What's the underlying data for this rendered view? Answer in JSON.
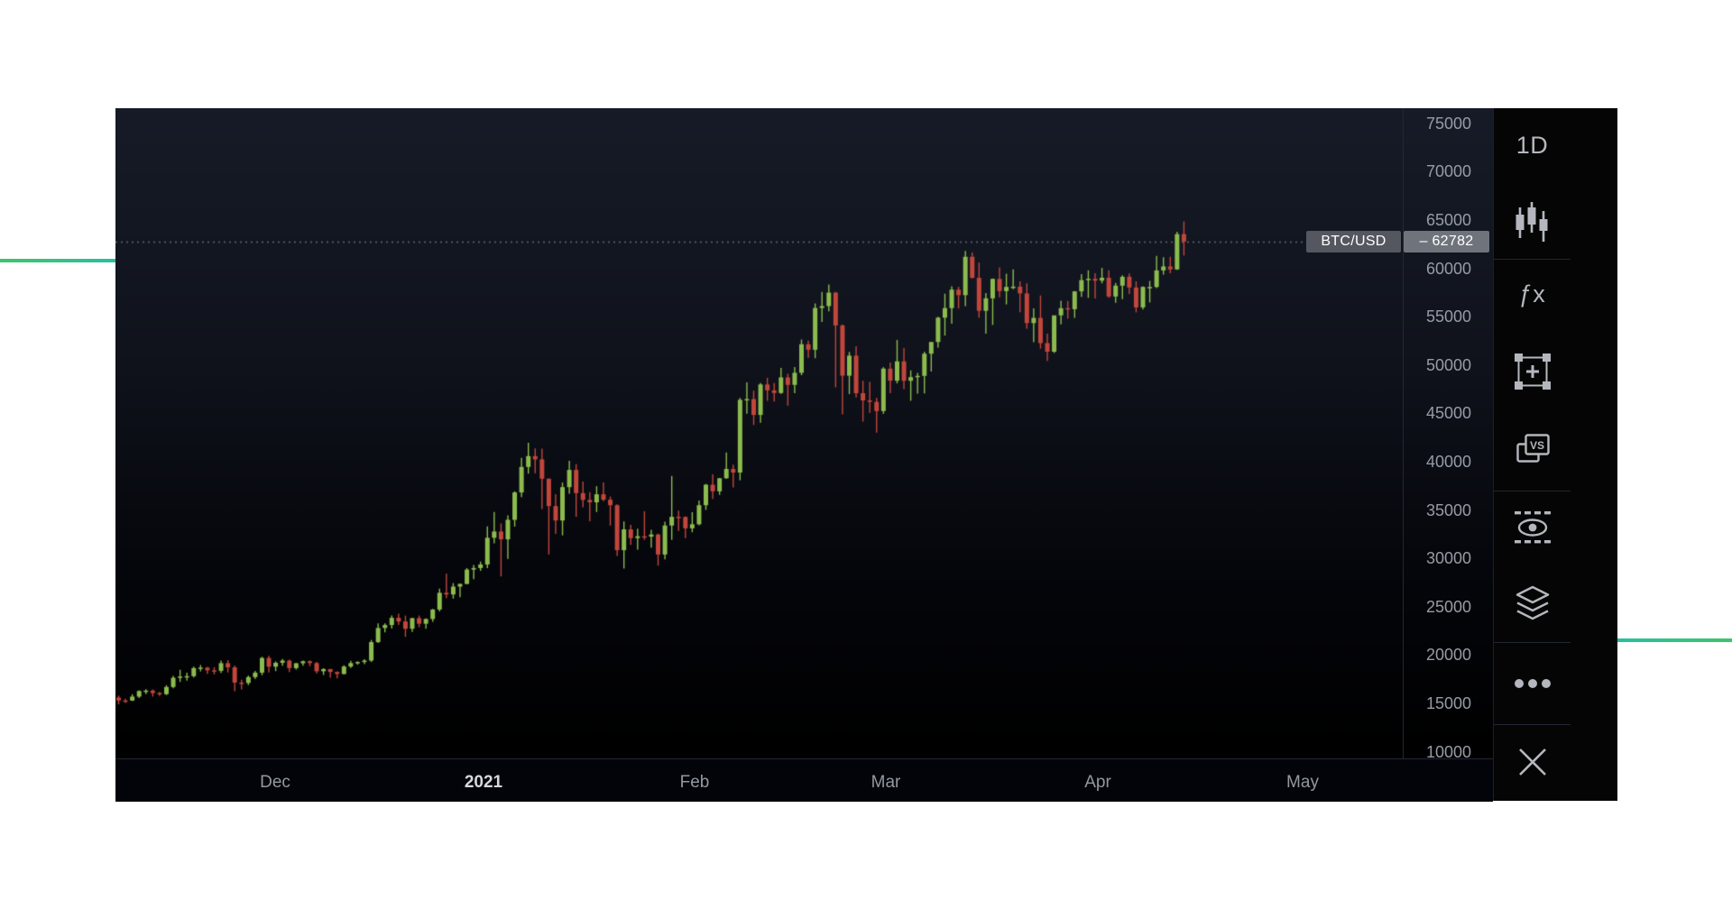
{
  "price_tag": {
    "symbol": "BTC/USD",
    "value_label": "– 62782"
  },
  "sidebar": {
    "items": [
      {
        "id": "interval",
        "label": "1D",
        "icon": null
      },
      {
        "id": "chart-type",
        "label": null,
        "icon": "candles"
      },
      {
        "id": "indicators",
        "label": "ƒx",
        "icon": null
      },
      {
        "id": "alerts",
        "label": null,
        "icon": "frame-plus"
      },
      {
        "id": "compare",
        "label": null,
        "icon": "vs",
        "badge": "VS"
      },
      {
        "id": "drawings-visibility",
        "label": null,
        "icon": "eye-dashed"
      },
      {
        "id": "object-tree",
        "label": null,
        "icon": "layers"
      },
      {
        "id": "more",
        "label": null,
        "icon": "dots"
      },
      {
        "id": "close",
        "label": null,
        "icon": "close"
      }
    ]
  },
  "colors": {
    "up": "#8cbb4e",
    "down": "#c2463c",
    "dotted_line": "#62656e",
    "tag_bg": "#54575f",
    "price_box_bg": "#6f737c",
    "accent_teal": "#2abfa0",
    "accent_green": "#3fc46c",
    "bg_top": "#161b27",
    "bg_bottom": "#000000"
  },
  "chart_data": {
    "type": "candlestick",
    "symbol": "BTC/USD",
    "interval": "1D",
    "last_price": 62782,
    "title": "",
    "grid": false,
    "legend_position": "none",
    "price_axis": {
      "ticks": [
        75000,
        70000,
        65000,
        60000,
        55000,
        50000,
        45000,
        40000,
        35000,
        30000,
        25000,
        20000,
        15000,
        10000
      ],
      "visible_range": [
        8500,
        76600
      ]
    },
    "time_axis": {
      "labels": [
        "Dec",
        "2021",
        "Feb",
        "Mar",
        "Apr",
        "May"
      ],
      "range": [
        "2020-11-08",
        "2021-04-14"
      ]
    },
    "candles_ohlc": [
      [
        15600,
        15800,
        14900,
        15300
      ],
      [
        15300,
        15500,
        15050,
        15290
      ],
      [
        15290,
        15950,
        15250,
        15700
      ],
      [
        15700,
        16350,
        15550,
        16280
      ],
      [
        16280,
        16480,
        15960,
        16320
      ],
      [
        16320,
        16450,
        15700,
        16070
      ],
      [
        16070,
        16180,
        15780,
        15960
      ],
      [
        15960,
        16880,
        15850,
        16700
      ],
      [
        16700,
        17850,
        16560,
        17650
      ],
      [
        17650,
        18480,
        17220,
        17780
      ],
      [
        17780,
        18180,
        17350,
        17820
      ],
      [
        17820,
        18800,
        17680,
        18650
      ],
      [
        18650,
        18970,
        18310,
        18700
      ],
      [
        18700,
        18770,
        18050,
        18420
      ],
      [
        18420,
        18750,
        18000,
        18370
      ],
      [
        18370,
        19420,
        18150,
        19160
      ],
      [
        19160,
        19480,
        18200,
        18730
      ],
      [
        18730,
        18910,
        16250,
        17150
      ],
      [
        17150,
        17450,
        16450,
        17110
      ],
      [
        17110,
        17880,
        16890,
        17720
      ],
      [
        17720,
        18360,
        17520,
        18180
      ],
      [
        18180,
        19820,
        17920,
        19700
      ],
      [
        19700,
        19920,
        18200,
        18800
      ],
      [
        18800,
        19340,
        18330,
        19200
      ],
      [
        19200,
        19600,
        18900,
        19430
      ],
      [
        19430,
        19520,
        18250,
        18650
      ],
      [
        18650,
        19180,
        18500,
        19150
      ],
      [
        19150,
        19420,
        18900,
        19360
      ],
      [
        19360,
        19440,
        18850,
        19170
      ],
      [
        19170,
        19300,
        18100,
        18320
      ],
      [
        18320,
        18640,
        17940,
        18550
      ],
      [
        18550,
        18560,
        17650,
        18250
      ],
      [
        18250,
        18300,
        17580,
        18040
      ],
      [
        18040,
        18950,
        18000,
        18810
      ],
      [
        18810,
        19410,
        18650,
        19170
      ],
      [
        19170,
        19350,
        19000,
        19280
      ],
      [
        19280,
        19570,
        19050,
        19430
      ],
      [
        19430,
        21560,
        19280,
        21340
      ],
      [
        21340,
        23270,
        21240,
        22800
      ],
      [
        22800,
        23290,
        22350,
        23110
      ],
      [
        23110,
        24100,
        22750,
        23850
      ],
      [
        23850,
        24290,
        23120,
        23470
      ],
      [
        23470,
        24080,
        21880,
        22720
      ],
      [
        22720,
        23830,
        22390,
        23820
      ],
      [
        23820,
        24090,
        22880,
        23240
      ],
      [
        23240,
        23790,
        22720,
        23730
      ],
      [
        23730,
        24780,
        23450,
        24710
      ],
      [
        24710,
        26870,
        24520,
        26440
      ],
      [
        26440,
        28420,
        25880,
        26270
      ],
      [
        26270,
        27440,
        25840,
        27080
      ],
      [
        27080,
        27410,
        25990,
        27360
      ],
      [
        27360,
        28990,
        27320,
        28840
      ],
      [
        28840,
        29330,
        27850,
        29000
      ],
      [
        29000,
        29660,
        28720,
        29370
      ],
      [
        29370,
        33300,
        29000,
        32130
      ],
      [
        32130,
        34800,
        31550,
        32780
      ],
      [
        32780,
        33620,
        28130,
        31970
      ],
      [
        31970,
        34450,
        29950,
        33990
      ],
      [
        33990,
        36940,
        33290,
        36820
      ],
      [
        36820,
        40400,
        36350,
        39460
      ],
      [
        39460,
        41950,
        38770,
        40580
      ],
      [
        40580,
        41380,
        38800,
        40240
      ],
      [
        40240,
        41350,
        35100,
        38240
      ],
      [
        38240,
        38270,
        30400,
        35410
      ],
      [
        35410,
        36650,
        32530,
        33920
      ],
      [
        33920,
        37850,
        32380,
        37370
      ],
      [
        37370,
        40100,
        36700,
        39150
      ],
      [
        39150,
        39750,
        34300,
        36750
      ],
      [
        36750,
        37950,
        35300,
        36050
      ],
      [
        36050,
        36860,
        33850,
        35800
      ],
      [
        35800,
        37470,
        34800,
        36630
      ],
      [
        36630,
        37860,
        35920,
        36070
      ],
      [
        36070,
        36400,
        33400,
        35500
      ],
      [
        35500,
        35600,
        30250,
        30850
      ],
      [
        30850,
        33820,
        28950,
        33000
      ],
      [
        33000,
        33460,
        31390,
        32100
      ],
      [
        32100,
        33070,
        30900,
        32290
      ],
      [
        32290,
        34875,
        31910,
        32250
      ],
      [
        32250,
        32950,
        31110,
        32470
      ],
      [
        32470,
        32560,
        29250,
        30400
      ],
      [
        30400,
        33800,
        29900,
        33400
      ],
      [
        33400,
        38530,
        31915,
        34300
      ],
      [
        34300,
        34940,
        32830,
        34280
      ],
      [
        34280,
        34350,
        32100,
        33110
      ],
      [
        33110,
        34780,
        32700,
        33530
      ],
      [
        33530,
        35980,
        33420,
        35500
      ],
      [
        35500,
        37700,
        35010,
        37620
      ],
      [
        37620,
        38700,
        36160,
        36940
      ],
      [
        36940,
        38310,
        36570,
        38290
      ],
      [
        38290,
        40950,
        38220,
        39250
      ],
      [
        39250,
        39700,
        37350,
        38880
      ],
      [
        38880,
        46600,
        38080,
        46400
      ],
      [
        46400,
        48200,
        44960,
        46480
      ],
      [
        46480,
        47350,
        43800,
        44840
      ],
      [
        44840,
        48150,
        44040,
        47990
      ],
      [
        47990,
        48680,
        46300,
        47380
      ],
      [
        47380,
        48150,
        46220,
        47110
      ],
      [
        47110,
        49700,
        47010,
        48720
      ],
      [
        48720,
        49100,
        45800,
        47950
      ],
      [
        47950,
        49800,
        47080,
        49200
      ],
      [
        49200,
        52640,
        48950,
        52150
      ],
      [
        52150,
        52530,
        50760,
        51580
      ],
      [
        51580,
        56370,
        50710,
        55900
      ],
      [
        55900,
        57550,
        54450,
        56100
      ],
      [
        56100,
        58330,
        55550,
        57490
      ],
      [
        57490,
        57570,
        47700,
        54100
      ],
      [
        54100,
        54200,
        44900,
        48900
      ],
      [
        48900,
        51350,
        47000,
        50970
      ],
      [
        50970,
        51950,
        46650,
        47090
      ],
      [
        47090,
        48370,
        44150,
        46340
      ],
      [
        46340,
        48250,
        45050,
        46190
      ],
      [
        46190,
        46590,
        43000,
        45240
      ],
      [
        45240,
        49780,
        44950,
        49630
      ],
      [
        49630,
        50250,
        47080,
        48380
      ],
      [
        48380,
        52600,
        48100,
        50380
      ],
      [
        50380,
        51750,
        47500,
        48370
      ],
      [
        48370,
        49450,
        46300,
        48750
      ],
      [
        48750,
        49200,
        47050,
        48880
      ],
      [
        48880,
        51380,
        47060,
        51170
      ],
      [
        51170,
        52400,
        49330,
        52380
      ],
      [
        52380,
        55000,
        51800,
        54900
      ],
      [
        54900,
        57380,
        53050,
        55890
      ],
      [
        55890,
        58150,
        54270,
        57800
      ],
      [
        57800,
        58100,
        55850,
        57230
      ],
      [
        57230,
        61800,
        56080,
        61200
      ],
      [
        61200,
        61650,
        58950,
        59020
      ],
      [
        59020,
        60600,
        54900,
        55610
      ],
      [
        55610,
        57450,
        53250,
        56900
      ],
      [
        56900,
        58950,
        54150,
        58910
      ],
      [
        58910,
        60100,
        57000,
        57650
      ],
      [
        57650,
        59450,
        56270,
        58080
      ],
      [
        58080,
        59900,
        57850,
        58110
      ],
      [
        58110,
        58650,
        55470,
        57410
      ],
      [
        57410,
        58450,
        53750,
        54340
      ],
      [
        54340,
        55850,
        52350,
        54880
      ],
      [
        54880,
        57200,
        51700,
        52270
      ],
      [
        52270,
        53250,
        50420,
        51380
      ],
      [
        51380,
        55100,
        51250,
        55140
      ],
      [
        55140,
        56650,
        54200,
        55880
      ],
      [
        55880,
        56620,
        54800,
        55780
      ],
      [
        55780,
        57660,
        54890,
        57620
      ],
      [
        57620,
        59400,
        57050,
        58780
      ],
      [
        58780,
        59800,
        56950,
        58920
      ],
      [
        58920,
        59500,
        56880,
        58730
      ],
      [
        58730,
        60050,
        58450,
        59030
      ],
      [
        59030,
        59800,
        56950,
        57090
      ],
      [
        57090,
        58500,
        56450,
        58210
      ],
      [
        58210,
        59280,
        56820,
        59130
      ],
      [
        59130,
        59480,
        57350,
        58020
      ],
      [
        58020,
        58660,
        55450,
        55960
      ],
      [
        55960,
        58150,
        55750,
        58080
      ],
      [
        58080,
        58700,
        56470,
        58080
      ],
      [
        58080,
        61300,
        57950,
        59790
      ],
      [
        59790,
        61150,
        59350,
        60200
      ],
      [
        60200,
        61200,
        59500,
        59890
      ],
      [
        59890,
        63780,
        59850,
        63540
      ],
      [
        63540,
        64850,
        61330,
        62782
      ]
    ]
  }
}
